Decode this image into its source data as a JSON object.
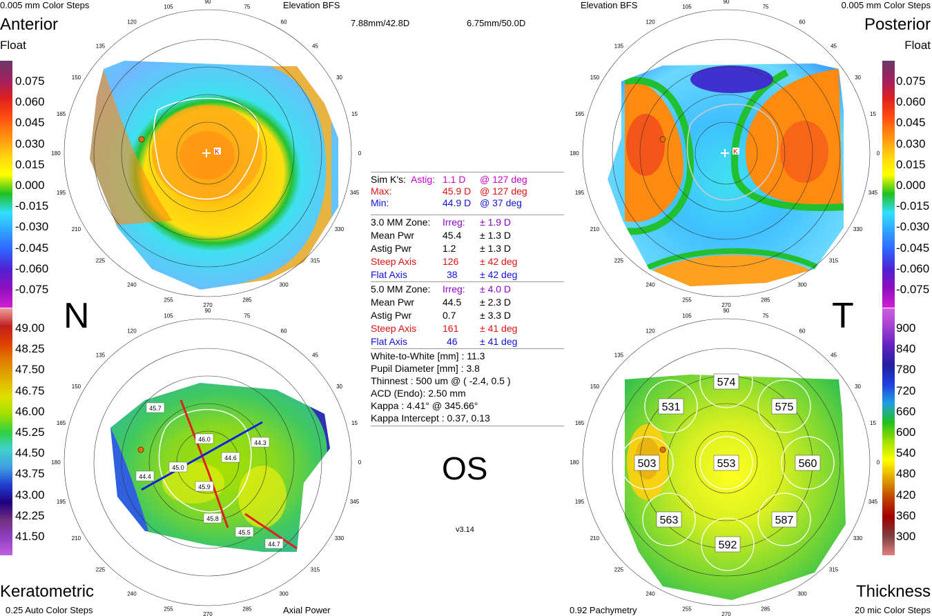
{
  "header": {
    "top_left": "0.005 mm Color Steps",
    "top_center_left": "Elevation BFS",
    "top_center_right": "Elevation BFS",
    "top_right": "0.005 mm Color Steps",
    "bfs_anterior": "7.88mm/42.8D",
    "bfs_posterior": "6.75mm/50.0D"
  },
  "titles": {
    "anterior": "Anterior",
    "anterior_sub": "Float",
    "posterior": "Posterior",
    "posterior_sub": "Float",
    "keratometric": "Keratometric",
    "thickness": "Thickness",
    "nasal": "N",
    "temporal": "T",
    "eye": "OS",
    "version": "v3.14"
  },
  "footer": {
    "bottom_left": "0.25 Auto Color Steps",
    "bottom_center_left": "Axial Power",
    "bottom_center_right": "0.92 Pachymetry",
    "bottom_right": "20 mic Color Steps"
  },
  "scales": {
    "elevation_left": [
      "0.075",
      "0.060",
      "0.045",
      "0.030",
      "0.015",
      "0.000",
      "-0.015",
      "-0.030",
      "-0.045",
      "-0.060",
      "-0.075"
    ],
    "elevation_right": [
      "0.075",
      "0.060",
      "0.045",
      "0.030",
      "0.015",
      "0.000",
      "-0.015",
      "-0.030",
      "-0.045",
      "-0.060",
      "-0.075"
    ],
    "keratometric": [
      "49.00",
      "48.25",
      "47.50",
      "46.75",
      "46.00",
      "45.25",
      "44.50",
      "43.75",
      "43.00",
      "42.25",
      "41.50"
    ],
    "thickness": [
      "900",
      "840",
      "780",
      "720",
      "660",
      "600",
      "540",
      "480",
      "420",
      "360",
      "300"
    ]
  },
  "angle_labels": [
    "0",
    "15",
    "30",
    "45",
    "60",
    "75",
    "90",
    "105",
    "120",
    "135",
    "150",
    "165",
    "180",
    "195",
    "210",
    "225",
    "240",
    "255",
    "270",
    "285",
    "300",
    "315",
    "330",
    "345"
  ],
  "info": {
    "simk_label": "Sim K's:",
    "simk_astig_label": "Astig:",
    "simk_astig": "1.1 D",
    "simk_astig_axis": "@ 127 deg",
    "max_label": "Max:",
    "max_val": "45.9 D",
    "max_axis": "@ 127 deg",
    "min_label": "Min:",
    "min_val": "44.9 D",
    "min_axis": "@ 37 deg",
    "z3_label": "3.0 MM Zone:",
    "z3_irreg_label": "Irreg:",
    "z3_irreg": "± 1.9 D",
    "z3_mean_label": "Mean Pwr",
    "z3_mean": "45.4",
    "z3_mean_sd": "± 1.3 D",
    "z3_astig_label": "Astig Pwr",
    "z3_astig": "1.2",
    "z3_astig_sd": "± 1.3 D",
    "z3_steep_label": "Steep Axis",
    "z3_steep": "126",
    "z3_steep_sd": "± 42 deg",
    "z3_flat_label": "Flat Axis",
    "z3_flat": "38",
    "z3_flat_sd": "± 42 deg",
    "z5_label": "5.0 MM Zone:",
    "z5_irreg_label": "Irreg:",
    "z5_irreg": "± 4.0 D",
    "z5_mean_label": "Mean Pwr",
    "z5_mean": "44.5",
    "z5_mean_sd": "± 2.3 D",
    "z5_astig_label": "Astig Pwr",
    "z5_astig": "0.7",
    "z5_astig_sd": "± 3.3 D",
    "z5_steep_label": "Steep Axis",
    "z5_steep": "161",
    "z5_steep_sd": "± 41 deg",
    "z5_flat_label": "Flat Axis",
    "z5_flat": "46",
    "z5_flat_sd": "± 41 deg",
    "wtw": "White-to-White [mm] : 11.3",
    "pupil": "Pupil Diameter [mm] :  3.8",
    "thinnest": "Thinnest : 500 um @ ( -2.4, 0.5 )",
    "acd": "ACD (Endo): 2.50 mm",
    "kappa": "Kappa : 4.41° @ 345.66°",
    "kappa_intercept": "Kappa Intercept : 0.37, 0.13"
  },
  "chart_data": [
    {
      "type": "heatmap",
      "title": "Anterior Float",
      "units": "mm",
      "scale": [
        "0.075",
        "0.060",
        "0.045",
        "0.030",
        "0.015",
        "0.000",
        "-0.015",
        "-0.030",
        "-0.045",
        "-0.060",
        "-0.075"
      ]
    },
    {
      "type": "heatmap",
      "title": "Posterior Float",
      "units": "mm",
      "scale": [
        "0.075",
        "0.060",
        "0.045",
        "0.030",
        "0.015",
        "0.000",
        "-0.015",
        "-0.030",
        "-0.045",
        "-0.060",
        "-0.075"
      ]
    },
    {
      "type": "heatmap",
      "title": "Keratometric",
      "subtitle": "Axial Power",
      "values": [
        "45.7",
        "46.0",
        "44.3",
        "44.6",
        "45.0",
        "44.4",
        "45.9",
        "45.8",
        "45.5",
        "44.7"
      ]
    },
    {
      "type": "heatmap",
      "title": "Thickness",
      "units": "um",
      "values": [
        "574",
        "531",
        "575",
        "503",
        "553",
        "560",
        "563",
        "587",
        "592"
      ]
    }
  ]
}
